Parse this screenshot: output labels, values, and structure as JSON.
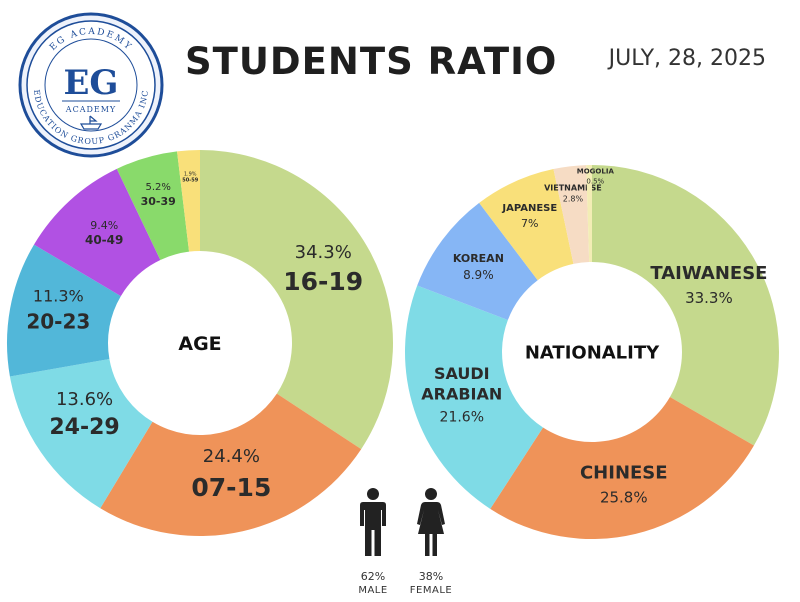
{
  "header": {
    "title": "STUDENTS RATIO",
    "date": "JULY, 28, 2025"
  },
  "logo": {
    "top_text": "EG ACADEMY",
    "monogram": "EG",
    "sub_text": "ACADEMY",
    "bottom_text": "EDUCATION GROUP GRANMA INC"
  },
  "chart_data": [
    {
      "type": "pie",
      "variant": "donut",
      "center_label": "AGE",
      "slices": [
        {
          "label": "16-19",
          "value": 34.3,
          "display": "34.3%",
          "color": "#c5d98d"
        },
        {
          "label": "07-15",
          "value": 24.4,
          "display": "24.4%",
          "color": "#ef9359"
        },
        {
          "label": "24-29",
          "value": 13.6,
          "display": "13.6%",
          "color": "#7fdbe6"
        },
        {
          "label": "20-23",
          "value": 11.3,
          "display": "11.3%",
          "color": "#52b7d9"
        },
        {
          "label": "40-49",
          "value": 9.4,
          "display": "9.4%",
          "color": "#b151e3"
        },
        {
          "label": "30-39",
          "value": 5.2,
          "display": "5.2%",
          "color": "#89da6b"
        },
        {
          "label": "50-59",
          "value": 1.9,
          "display": "1.9%",
          "color": "#f9e07a"
        }
      ]
    },
    {
      "type": "pie",
      "variant": "donut",
      "center_label": "NATIONALITY",
      "slices": [
        {
          "label": "TAIWANESE",
          "value": 33.3,
          "display": "33.3%",
          "color": "#c5d98d"
        },
        {
          "label": "CHINESE",
          "value": 25.8,
          "display": "25.8%",
          "color": "#ef9359"
        },
        {
          "label": "SAUDI ARABIAN",
          "value": 21.6,
          "display": "21.6%",
          "color": "#7fdbe6"
        },
        {
          "label": "KOREAN",
          "value": 8.9,
          "display": "8.9%",
          "color": "#86b6f5"
        },
        {
          "label": "JAPANESE",
          "value": 7,
          "display": "7%",
          "color": "#f9e07a"
        },
        {
          "label": "VIETNAMESE",
          "value": 2.8,
          "display": "2.8%",
          "color": "#f6dcc4"
        },
        {
          "label": "MOGOLIA",
          "value": 0.5,
          "display": "0.5%",
          "color": "#f3edb5"
        }
      ]
    }
  ],
  "gender": [
    {
      "label": "MALE",
      "display": "62%",
      "value": 62
    },
    {
      "label": "FEMALE",
      "display": "38%",
      "value": 38
    }
  ]
}
